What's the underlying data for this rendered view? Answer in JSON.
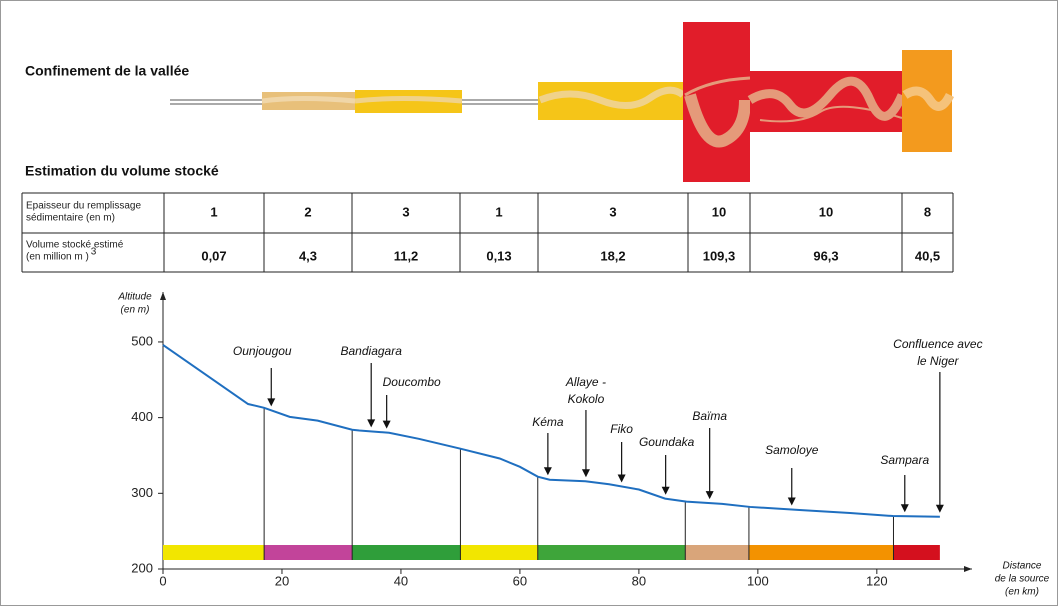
{
  "headings": {
    "confinement": "Confinement de la vallée",
    "volume": "Estimation du volume stocké"
  },
  "table": {
    "row_headers": [
      [
        "Epaisseur du remplissage",
        "sédimentaire (en m)"
      ],
      [
        "Volume stocké estimé",
        "(en million m )",
        "3"
      ]
    ],
    "rows": [
      [
        "1",
        "2",
        "3",
        "1",
        "3",
        "10",
        "10",
        "8"
      ],
      [
        "0,07",
        "4,3",
        "11,2",
        "0,13",
        "18,2",
        "109,3",
        "96,3",
        "40,5"
      ]
    ]
  },
  "chart_data": {
    "type": "line",
    "y_label": [
      "Altitude",
      "(en m)"
    ],
    "x_label": [
      "Distance",
      "de la source",
      "(en km)"
    ],
    "x": [
      0,
      14.3,
      17,
      21.3,
      26,
      31.8,
      33,
      38,
      43,
      50,
      56.6,
      60,
      63,
      65,
      71,
      75,
      80,
      84.4,
      88,
      94,
      98.7,
      107,
      115.5,
      122.7,
      130.6
    ],
    "values": [
      496,
      418,
      413,
      401,
      396,
      384,
      383,
      380,
      372,
      359,
      346,
      335,
      322,
      318,
      316,
      312,
      305,
      293,
      289,
      286,
      282,
      278,
      274,
      270,
      269
    ],
    "color": "#1f6fc0",
    "xlim": [
      0,
      136
    ],
    "ylim": [
      200,
      566
    ],
    "xticks": [
      0,
      20,
      40,
      60,
      80,
      100,
      120
    ],
    "yticks": [
      200,
      300,
      400,
      500
    ],
    "section_boundaries": [
      17,
      31.8,
      50,
      63,
      87.8,
      98.5,
      122.8
    ],
    "band_edges": [
      0,
      17,
      31.8,
      50,
      63,
      87.8,
      98.5,
      122.8,
      130.6
    ],
    "band_colors": [
      "#f2e600",
      "#c2449a",
      "#2f9e3a",
      "#f2e600",
      "#3ea53a",
      "#d9a57a",
      "#f39200",
      "#d4101e"
    ],
    "places": [
      {
        "label": [
          "Ounjougou"
        ],
        "x": 18.2
      },
      {
        "label": [
          "Bandiagara"
        ],
        "x": 35
      },
      {
        "label": [
          "Doucombo"
        ],
        "x": 37.6
      },
      {
        "label": [
          "Kéma"
        ],
        "x": 64.7
      },
      {
        "label": [
          "Allaye -",
          "Kokolo"
        ],
        "x": 71.1
      },
      {
        "label": [
          "Fiko"
        ],
        "x": 77.1
      },
      {
        "label": [
          "Goundaka"
        ],
        "x": 84.5
      },
      {
        "label": [
          "Baïma"
        ],
        "x": 91.9
      },
      {
        "label": [
          "Samoloye"
        ],
        "x": 105.7
      },
      {
        "label": [
          "Sampara"
        ],
        "x": 124.7
      },
      {
        "label": [
          "Confluence avec",
          "le Niger"
        ],
        "x": 130.6
      }
    ]
  }
}
